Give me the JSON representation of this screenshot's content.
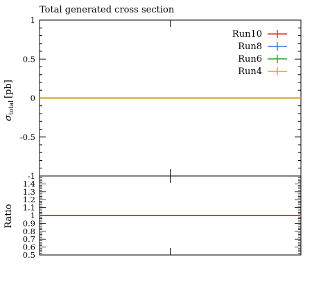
{
  "chart_data": {
    "type": "line",
    "title": "Total generated cross section",
    "main": {
      "ylabel_symbol": "σ",
      "ylabel_subscript": "total",
      "ylabel_unit": "[pb]",
      "ylim": [
        -1,
        1
      ],
      "yticks": [
        -1,
        -0.5,
        0,
        0.5,
        1
      ],
      "ytick_labels": [
        "-1",
        "-0.5",
        "0",
        "0.5",
        "1"
      ]
    },
    "ratio": {
      "ylabel": "Ratio",
      "ylim": [
        0.5,
        1.5
      ],
      "yticks": [
        0.5,
        0.6,
        0.7,
        0.8,
        0.9,
        1,
        1.1,
        1.2,
        1.3,
        1.4
      ],
      "ytick_labels": [
        "0.5",
        "0.6",
        "0.7",
        "0.8",
        "0.9",
        "1",
        "1.1",
        "1.2",
        "1.3",
        "1.4"
      ],
      "value": 1.0
    },
    "xlim": [
      0,
      1
    ],
    "series": [
      {
        "name": "Run10",
        "color": "#e0301e",
        "value": 0
      },
      {
        "name": "Run8",
        "color": "#3b6fe0",
        "value": 0
      },
      {
        "name": "Run6",
        "color": "#2a9d2a",
        "value": 0
      },
      {
        "name": "Run4",
        "color": "#ff9900",
        "value": 0
      }
    ],
    "legend_position": "top-right"
  }
}
